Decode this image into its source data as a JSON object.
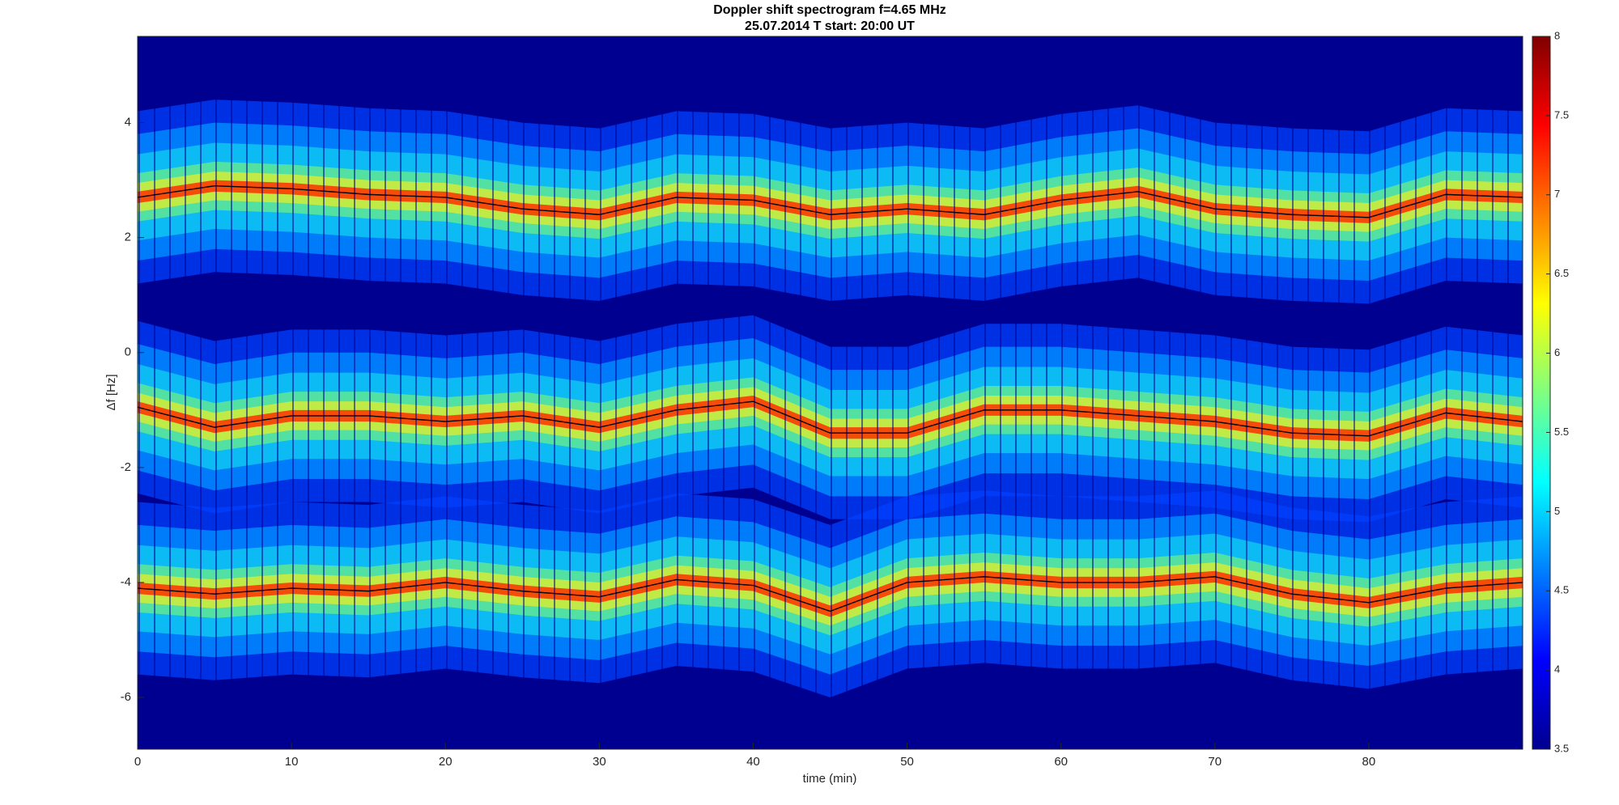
{
  "chart_data": {
    "type": "spectrogram",
    "title": "Doppler shift spectrogram f=4.65 MHz",
    "subtitle": "25.07.2014   T start: 20:00 UT",
    "x_label": "time (min)",
    "y_label": "Δf [Hz]",
    "x": [
      0,
      5,
      10,
      15,
      20,
      25,
      30,
      35,
      40,
      45,
      50,
      55,
      60,
      65,
      70,
      75,
      80,
      85,
      90
    ],
    "series": [
      {
        "color": "#000000",
        "values": [
          2.7,
          2.9,
          2.85,
          2.75,
          2.7,
          2.5,
          2.4,
          2.7,
          2.65,
          2.4,
          2.5,
          2.4,
          2.65,
          2.8,
          2.5,
          2.4,
          2.35,
          2.75,
          2.7
        ]
      },
      {
        "color": "#000000",
        "values": [
          -0.95,
          -1.3,
          -1.1,
          -1.1,
          -1.2,
          -1.1,
          -1.3,
          -1.0,
          -0.85,
          -1.4,
          -1.4,
          -1.0,
          -1.0,
          -1.1,
          -1.2,
          -1.4,
          -1.45,
          -1.05,
          -1.2
        ]
      },
      {
        "color": "#000000",
        "values": [
          -4.1,
          -4.2,
          -4.1,
          -4.15,
          -4.0,
          -4.15,
          -4.25,
          -3.95,
          -4.05,
          -4.5,
          -4.0,
          -3.9,
          -4.0,
          -4.0,
          -3.9,
          -4.2,
          -4.35,
          -4.1,
          -4.0
        ]
      }
    ],
    "xlim": [
      0,
      90
    ],
    "xticks": [
      0,
      10,
      20,
      30,
      40,
      50,
      60,
      70,
      80
    ],
    "ylim": [
      -6.9,
      5.5
    ],
    "yticks": [
      -6,
      -4,
      -2,
      0,
      2,
      4
    ],
    "colormap": "jet",
    "clim": [
      3.5,
      8
    ],
    "cticks": [
      3.5,
      4,
      4.5,
      5,
      5.5,
      6,
      6.5,
      7,
      7.5,
      8
    ]
  }
}
